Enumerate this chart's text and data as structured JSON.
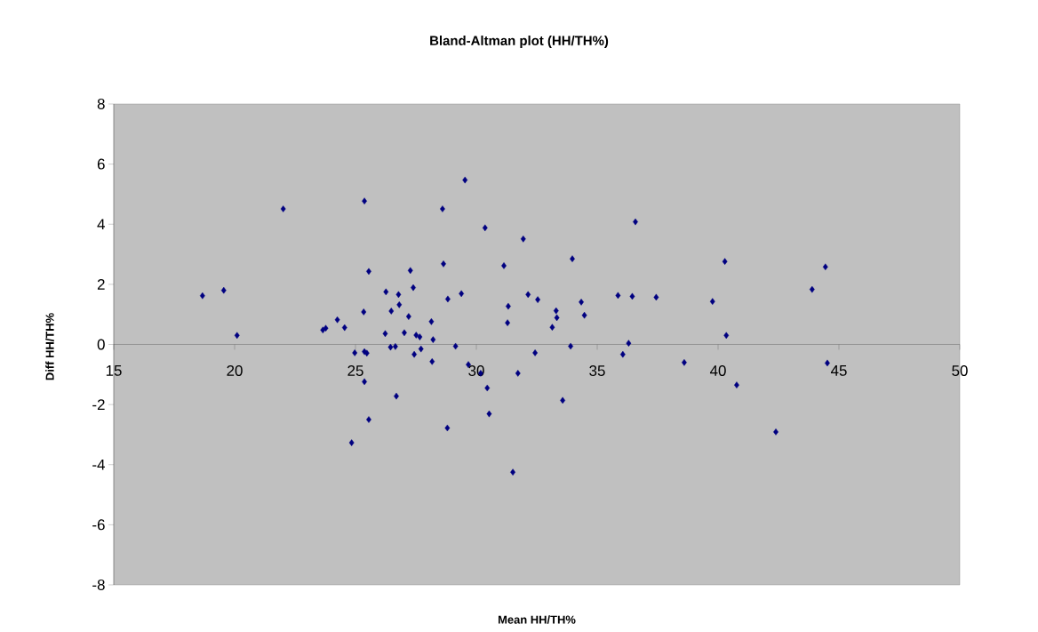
{
  "chart_data": {
    "type": "scatter",
    "title": "Bland-Altman plot  (HH/TH%)",
    "xlabel": "Mean HH/TH%",
    "ylabel": "Diff HH/TH%",
    "x": [
      18.67,
      19.55,
      20.1,
      22.01,
      25.37,
      25.55,
      25.34,
      23.65,
      23.77,
      24.25,
      24.55,
      26.26,
      26.78,
      26.81,
      26.48,
      26.23,
      27.02,
      26.45,
      26.65,
      24.97,
      25.37,
      25.47,
      25.37,
      26.69,
      25.55,
      24.84,
      27.2,
      29.53,
      28.6,
      30.36,
      31.94,
      36.58,
      33.97,
      27.27,
      28.64,
      31.14,
      27.39,
      29.38,
      28.82,
      32.14,
      32.54,
      31.32,
      31.29,
      33.3,
      33.33,
      33.14,
      34.34,
      34.47,
      35.86,
      36.45,
      37.44,
      28.14,
      27.51,
      27.66,
      28.21,
      27.43,
      27.71,
      28.17,
      29.14,
      29.67,
      30.18,
      30.45,
      30.53,
      31.72,
      32.43,
      33.57,
      33.9,
      28.8,
      36.3,
      36.06,
      38.6,
      31.51,
      40.28,
      39.77,
      40.34,
      43.89,
      44.44,
      44.52,
      40.77,
      42.39
    ],
    "values": [
      1.62,
      1.8,
      0.3,
      4.51,
      4.77,
      2.43,
      1.08,
      0.48,
      0.54,
      0.82,
      0.56,
      1.75,
      1.66,
      1.32,
      1.11,
      0.36,
      0.39,
      -0.09,
      -0.07,
      -0.28,
      -0.24,
      -0.29,
      -1.24,
      -1.72,
      -2.5,
      -3.27,
      0.93,
      5.47,
      4.51,
      3.88,
      3.51,
      4.08,
      2.85,
      2.46,
      2.68,
      2.62,
      1.89,
      1.69,
      1.51,
      1.66,
      1.49,
      1.27,
      0.72,
      1.12,
      0.89,
      0.57,
      1.41,
      0.97,
      1.63,
      1.6,
      1.57,
      0.76,
      0.31,
      0.25,
      0.16,
      -0.33,
      -0.15,
      -0.57,
      -0.06,
      -0.67,
      -0.96,
      -1.45,
      -2.31,
      -0.96,
      -0.28,
      -1.86,
      -0.06,
      -2.78,
      0.04,
      -0.33,
      -0.6,
      -4.25,
      2.76,
      1.43,
      0.3,
      1.83,
      2.58,
      -0.62,
      -1.35,
      -2.91
    ],
    "color": "#000080",
    "marker": "diamond",
    "xlim": [
      15,
      50
    ],
    "ylim": [
      -8,
      8
    ],
    "xticks": [
      15,
      20,
      25,
      30,
      35,
      40,
      45,
      50
    ],
    "yticks": [
      -8,
      -6,
      -4,
      -2,
      0,
      2,
      4,
      6,
      8
    ]
  }
}
